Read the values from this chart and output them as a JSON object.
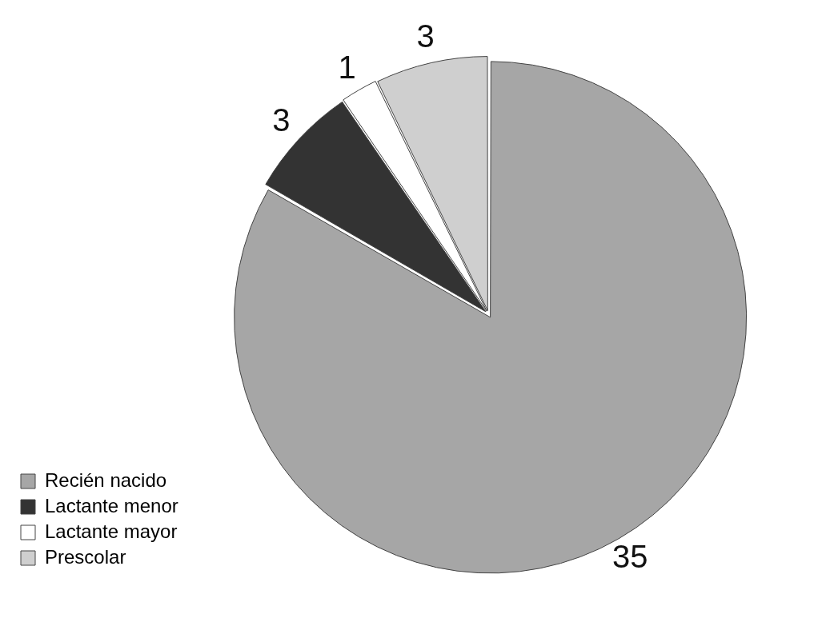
{
  "chart_data": {
    "type": "pie",
    "categories": [
      "Recién nacido",
      "Lactante menor",
      "Lactante mayor",
      "Prescolar"
    ],
    "values": [
      35,
      3,
      1,
      3
    ],
    "colors": [
      "#a6a6a6",
      "#333333",
      "#ffffff",
      "#cfcfcf"
    ],
    "data_labels": true,
    "legend": "bottom left"
  }
}
